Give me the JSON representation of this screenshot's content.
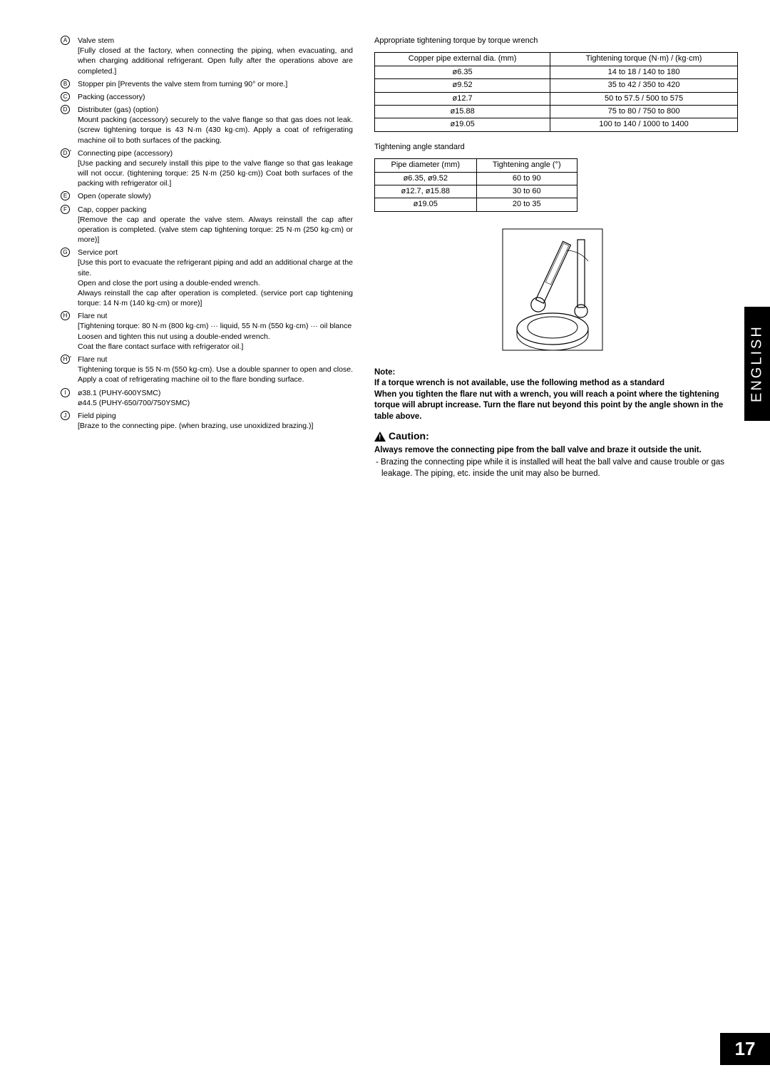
{
  "left_items": [
    {
      "marker": "A",
      "prime": false,
      "title": "Valve stem",
      "desc": "[Fully closed at the factory, when connecting the piping, when evacuating, and when charging additional refrigerant. Open fully after the operations above are completed.]"
    },
    {
      "marker": "B",
      "prime": false,
      "title": "Stopper pin [Prevents the valve stem from turning 90° or more.]",
      "desc": ""
    },
    {
      "marker": "C",
      "prime": false,
      "title": "Packing (accessory)",
      "desc": ""
    },
    {
      "marker": "D",
      "prime": false,
      "title": "Distributer (gas) (option)",
      "desc": "Mount packing (accessory) securely to the valve flange so that gas does not leak. (screw tightening torque is 43 N·m (430 kg·cm). Apply a coat of refrigerating machine oil to both surfaces of the packing."
    },
    {
      "marker": "D",
      "prime": true,
      "title": "Connecting pipe (accessory)",
      "desc": "[Use packing and securely install this pipe to the valve flange so that gas leakage will not occur. (tightening torque: 25 N·m (250 kg·cm)) Coat both surfaces of the packing with refrigerator oil.]"
    },
    {
      "marker": "E",
      "prime": false,
      "title": "Open (operate slowly)",
      "desc": ""
    },
    {
      "marker": "F",
      "prime": false,
      "title": "Cap, copper packing",
      "desc": "[Remove the cap and operate the valve stem. Always reinstall the cap after operation is completed. (valve stem cap tightening torque: 25 N·m (250 kg·cm) or more)]"
    },
    {
      "marker": "G",
      "prime": false,
      "title": "Service port",
      "desc": "[Use this port to evacuate the refrigerant piping and add an additional charge at the site.\nOpen and close the port using a double-ended wrench.\nAlways reinstall the cap after operation is completed. (service port cap tightening torque: 14 N·m (140 kg·cm) or more)]"
    },
    {
      "marker": "H",
      "prime": false,
      "title": "Flare nut",
      "desc": "[Tightening torque: 80 N·m (800 kg·cm) ··· liquid, 55 N·m (550 kg·cm) ··· oil blance\nLoosen and tighten this nut using a double-ended wrench.\nCoat the flare contact surface with refrigerator oil.]"
    },
    {
      "marker": "H",
      "prime": true,
      "title": "Flare nut",
      "desc": "Tightening torque is 55 N·m (550 kg·cm). Use a double spanner to open and close. Apply a coat of refrigerating machine oil to the flare bonding surface."
    },
    {
      "marker": "I",
      "prime": false,
      "title": "ø38.1 (PUHY-600YSMC)",
      "desc": "ø44.5 (PUHY-650/700/750YSMC)"
    },
    {
      "marker": "J",
      "prime": false,
      "title": "Field piping",
      "desc": "[Braze to the connecting pipe. (when brazing, use unoxidized brazing.)]"
    }
  ],
  "right": {
    "torque_heading": "Appropriate tightening torque by torque wrench",
    "torque_table": {
      "headers": [
        "Copper pipe external dia. (mm)",
        "Tightening torque (N·m) / (kg·cm)"
      ],
      "rows": [
        [
          "ø6.35",
          "14 to 18 / 140 to 180"
        ],
        [
          "ø9.52",
          "35 to 42 / 350 to 420"
        ],
        [
          "ø12.7",
          "50 to 57.5 / 500 to 575"
        ],
        [
          "ø15.88",
          "75 to 80 / 750 to 800"
        ],
        [
          "ø19.05",
          "100 to 140 / 1000 to 1400"
        ]
      ]
    },
    "angle_heading": "Tightening angle standard",
    "angle_table": {
      "headers": [
        "Pipe diameter (mm)",
        "Tightening angle (°)"
      ],
      "rows": [
        [
          "ø6.35, ø9.52",
          "60 to 90"
        ],
        [
          "ø12.7, ø15.88",
          "30 to 60"
        ],
        [
          "ø19.05",
          "20 to 35"
        ]
      ]
    },
    "note_label": "Note:",
    "note_text": "If a torque wrench is not available, use the following method as a standard\nWhen you tighten the flare nut with a wrench, you will reach a point where the tightening torque will abrupt increase. Turn the flare nut beyond this point by the angle shown in the table above.",
    "caution_label": "Caution:",
    "caution_bold": "Always remove the connecting pipe from the ball valve and braze it outside the unit.",
    "caution_item": "-  Brazing the connecting pipe while it is installed will heat the ball valve and cause trouble or gas leakage. The piping, etc. inside the unit may also be burned."
  },
  "side_tab": "ENGLISH",
  "page_number": "17"
}
